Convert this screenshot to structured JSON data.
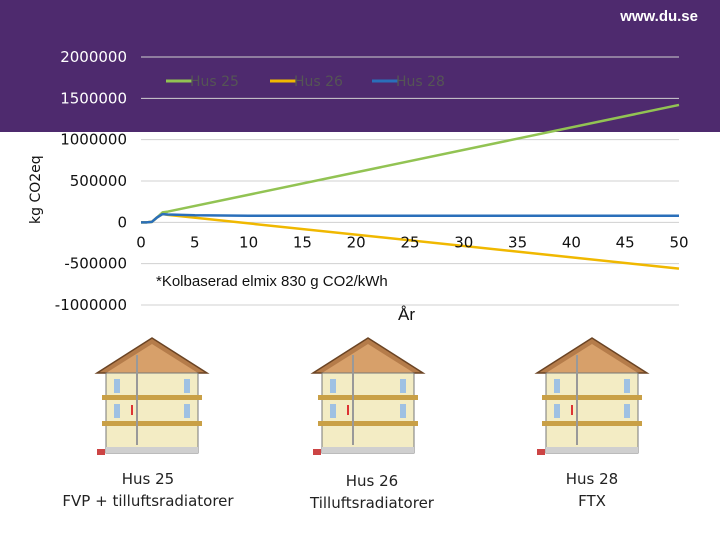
{
  "header": {
    "brand": "www.du.se"
  },
  "chart_data": {
    "type": "line",
    "title": "",
    "ylabel": "kg CO2eq",
    "xlabel": "År",
    "annotation": "*Kolbaserad elmix 830 g CO2/kWh",
    "xlim": [
      0,
      50
    ],
    "ylim": [
      -1000000,
      2000000
    ],
    "x_ticks": [
      "0",
      "5",
      "10",
      "15",
      "20",
      "25",
      "30",
      "35",
      "40",
      "45",
      "50"
    ],
    "y_ticks": [
      "2000000",
      "1500000",
      "1000000",
      "500000",
      "0",
      "-500000",
      "-1000000"
    ],
    "legend_position": "top",
    "grid": true,
    "colors": {
      "Hus 25": "#92c353",
      "Hus 26": "#f0b800",
      "Hus 28": "#2a6fba"
    },
    "series": [
      {
        "name": "Hus 25",
        "x": [
          0,
          0.5,
          1,
          1.5,
          2,
          2.5,
          50
        ],
        "y": [
          0,
          0,
          5000,
          60000,
          120000,
          130000,
          1420000
        ]
      },
      {
        "name": "Hus 26",
        "x": [
          0,
          0.5,
          1,
          1.5,
          2,
          2.5,
          50
        ],
        "y": [
          0,
          0,
          5000,
          60000,
          100000,
          90000,
          -560000
        ]
      },
      {
        "name": "Hus 28",
        "x": [
          0,
          0.5,
          1,
          1.5,
          2,
          2.5,
          5,
          10,
          50
        ],
        "y": [
          0,
          0,
          5000,
          60000,
          100000,
          95000,
          85000,
          80000,
          80000
        ]
      }
    ]
  },
  "houses": [
    {
      "caption_line1": "Hus 25",
      "caption_line2": "FVP + tilluftsradiatorer"
    },
    {
      "caption_line1": "Hus 26",
      "caption_line2": "Tilluftsradiatorer"
    },
    {
      "caption_line1": "Hus 28",
      "caption_line2": "FTX"
    }
  ]
}
